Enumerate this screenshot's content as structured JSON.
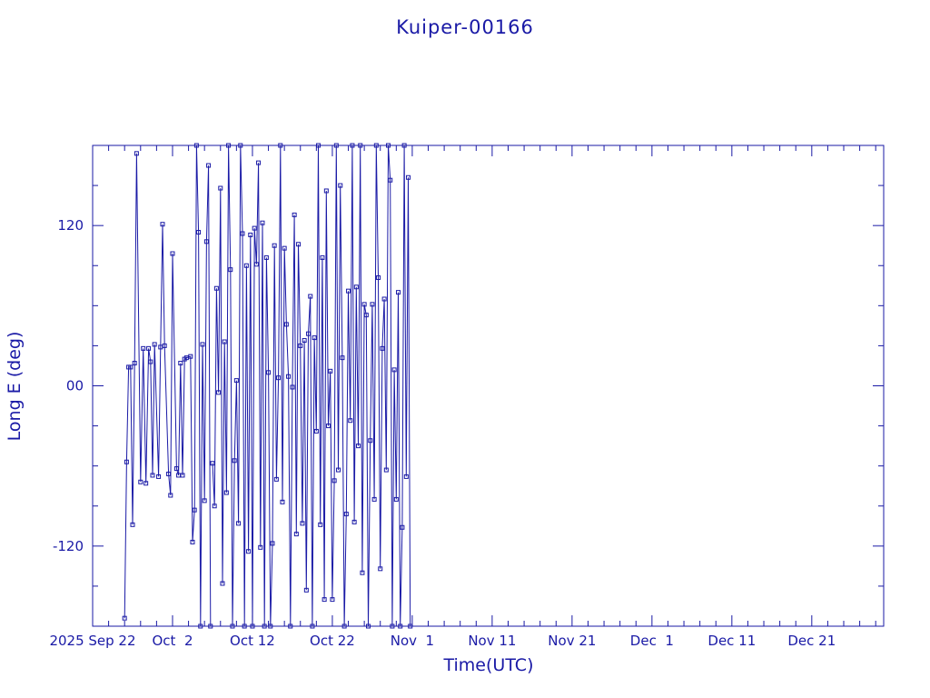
{
  "chart_data": {
    "type": "line",
    "title": "Kuiper-00166",
    "xlabel": "Time(UTC)",
    "ylabel": "Long E (deg)",
    "xlim": [
      "2025-09-22",
      "2025-12-30"
    ],
    "ylim": [
      -180,
      180
    ],
    "x_tick_labels": [
      {
        "date": "2025-09-22",
        "label": "2025 Sep 22"
      },
      {
        "date": "2025-10-02",
        "label": "Oct  2"
      },
      {
        "date": "2025-10-12",
        "label": "Oct 12"
      },
      {
        "date": "2025-10-22",
        "label": "Oct 22"
      },
      {
        "date": "2025-11-01",
        "label": "Nov  1"
      },
      {
        "date": "2025-11-11",
        "label": "Nov 11"
      },
      {
        "date": "2025-11-21",
        "label": "Nov 21"
      },
      {
        "date": "2025-12-01",
        "label": "Dec  1"
      },
      {
        "date": "2025-12-11",
        "label": "Dec 11"
      },
      {
        "date": "2025-12-21",
        "label": "Dec 21"
      }
    ],
    "y_ticks": [
      -120,
      0,
      120
    ],
    "y_tick_labels": [
      "-120",
      "00",
      "120"
    ],
    "line_color": "#1a1aa6",
    "marker": "square",
    "series": [
      {
        "points": [
          [
            "2025-09-26T00:00",
            -174
          ],
          [
            "2025-09-26T06:00",
            -57
          ],
          [
            "2025-09-26T12:00",
            14
          ],
          [
            "2025-09-26T18:00",
            14
          ],
          [
            "2025-09-27T00:00",
            -104
          ],
          [
            "2025-09-27T06:00",
            17
          ],
          [
            "2025-09-27T12:00",
            174
          ],
          [
            "2025-09-28T00:00",
            -72
          ],
          [
            "2025-09-28T08:00",
            28
          ],
          [
            "2025-09-28T16:00",
            -73
          ],
          [
            "2025-09-29T00:00",
            28
          ],
          [
            "2025-09-29T06:00",
            18
          ],
          [
            "2025-09-29T12:00",
            -67
          ],
          [
            "2025-09-29T18:00",
            31
          ],
          [
            "2025-09-30T06:00",
            -68
          ],
          [
            "2025-09-30T12:00",
            29
          ],
          [
            "2025-09-30T18:00",
            121
          ],
          [
            "2025-10-01T00:00",
            30
          ],
          [
            "2025-10-01T12:00",
            -66
          ],
          [
            "2025-10-01T18:00",
            -82
          ],
          [
            "2025-10-02T00:00",
            99
          ],
          [
            "2025-10-02T12:00",
            -62
          ],
          [
            "2025-10-02T18:00",
            -67
          ],
          [
            "2025-10-03T00:00",
            17
          ],
          [
            "2025-10-03T06:00",
            -67
          ],
          [
            "2025-10-03T12:00",
            20
          ],
          [
            "2025-10-03T18:00",
            21
          ],
          [
            "2025-10-04T06:00",
            22
          ],
          [
            "2025-10-04T12:00",
            -117
          ],
          [
            "2025-10-04T18:00",
            -93
          ],
          [
            "2025-10-05T00:00",
            180
          ],
          [
            "2025-10-05T06:00",
            115
          ],
          [
            "2025-10-05T12:00",
            -180
          ],
          [
            "2025-10-05T18:00",
            31
          ],
          [
            "2025-10-06T00:00",
            -86
          ],
          [
            "2025-10-06T06:00",
            108
          ],
          [
            "2025-10-06T12:00",
            165
          ],
          [
            "2025-10-06T18:00",
            -180
          ]
        ]
      },
      {
        "points": [
          [
            "2025-10-07T00:00",
            -58
          ],
          [
            "2025-10-07T06:00",
            -90
          ],
          [
            "2025-10-07T12:00",
            73
          ],
          [
            "2025-10-07T18:00",
            -5
          ],
          [
            "2025-10-08T00:00",
            148
          ],
          [
            "2025-10-08T06:00",
            -148
          ],
          [
            "2025-10-08T12:00",
            33
          ],
          [
            "2025-10-08T18:00",
            -80
          ],
          [
            "2025-10-09T00:00",
            180
          ],
          [
            "2025-10-09T06:00",
            87
          ],
          [
            "2025-10-09T12:00",
            -180
          ],
          [
            "2025-10-09T18:00",
            -56
          ],
          [
            "2025-10-10T00:00",
            4
          ],
          [
            "2025-10-10T06:00",
            -103
          ],
          [
            "2025-10-10T12:00",
            180
          ],
          [
            "2025-10-10T18:00",
            114
          ],
          [
            "2025-10-11T00:00",
            -180
          ],
          [
            "2025-10-11T06:00",
            90
          ],
          [
            "2025-10-11T12:00",
            -124
          ],
          [
            "2025-10-11T18:00",
            113
          ],
          [
            "2025-10-12T00:00",
            -180
          ],
          [
            "2025-10-12T06:00",
            118
          ],
          [
            "2025-10-12T12:00",
            91
          ],
          [
            "2025-10-12T18:00",
            167
          ],
          [
            "2025-10-13T00:00",
            -121
          ],
          [
            "2025-10-13T06:00",
            122
          ],
          [
            "2025-10-13T12:00",
            -180
          ],
          [
            "2025-10-13T18:00",
            96
          ],
          [
            "2025-10-14T00:00",
            10
          ],
          [
            "2025-10-14T06:00",
            -180
          ],
          [
            "2025-10-14T12:00",
            -118
          ],
          [
            "2025-10-14T18:00",
            105
          ],
          [
            "2025-10-15T00:00",
            -70
          ],
          [
            "2025-10-15T06:00",
            6
          ],
          [
            "2025-10-15T12:00",
            180
          ],
          [
            "2025-10-15T18:00",
            -87
          ],
          [
            "2025-10-16T00:00",
            103
          ],
          [
            "2025-10-16T06:00",
            46
          ],
          [
            "2025-10-16T12:00",
            7
          ],
          [
            "2025-10-16T18:00",
            -180
          ],
          [
            "2025-10-17T00:00",
            -1
          ],
          [
            "2025-10-17T06:00",
            128
          ],
          [
            "2025-10-17T12:00",
            -111
          ],
          [
            "2025-10-17T18:00",
            106
          ],
          [
            "2025-10-18T00:00",
            30
          ],
          [
            "2025-10-18T06:00",
            -103
          ],
          [
            "2025-10-18T12:00",
            34
          ],
          [
            "2025-10-18T18:00",
            -153
          ],
          [
            "2025-10-19T00:00",
            39
          ],
          [
            "2025-10-19T06:00",
            67
          ],
          [
            "2025-10-19T12:00",
            -180
          ],
          [
            "2025-10-19T18:00",
            36
          ],
          [
            "2025-10-20T00:00",
            -34
          ],
          [
            "2025-10-20T06:00",
            180
          ],
          [
            "2025-10-20T12:00",
            -104
          ],
          [
            "2025-10-20T18:00",
            96
          ],
          [
            "2025-10-21T00:00",
            -160
          ],
          [
            "2025-10-21T06:00",
            146
          ],
          [
            "2025-10-21T12:00",
            -30
          ],
          [
            "2025-10-21T18:00",
            11
          ],
          [
            "2025-10-22T00:00",
            -160
          ],
          [
            "2025-10-22T06:00",
            -71
          ],
          [
            "2025-10-22T12:00",
            180
          ],
          [
            "2025-10-22T18:00",
            -63
          ],
          [
            "2025-10-23T00:00",
            150
          ],
          [
            "2025-10-23T06:00",
            21
          ],
          [
            "2025-10-23T12:00",
            -180
          ],
          [
            "2025-10-23T18:00",
            -96
          ],
          [
            "2025-10-24T00:00",
            71
          ],
          [
            "2025-10-24T06:00",
            -26
          ],
          [
            "2025-10-24T12:00",
            180
          ],
          [
            "2025-10-24T18:00",
            -102
          ],
          [
            "2025-10-25T00:00",
            74
          ],
          [
            "2025-10-25T06:00",
            -45
          ],
          [
            "2025-10-25T12:00",
            180
          ],
          [
            "2025-10-25T18:00",
            -140
          ],
          [
            "2025-10-26T00:00",
            61
          ],
          [
            "2025-10-26T06:00",
            53
          ],
          [
            "2025-10-26T12:00",
            -180
          ],
          [
            "2025-10-26T18:00",
            -41
          ],
          [
            "2025-10-27T00:00",
            61
          ],
          [
            "2025-10-27T06:00",
            -85
          ],
          [
            "2025-10-27T12:00",
            180
          ],
          [
            "2025-10-27T18:00",
            81
          ],
          [
            "2025-10-28T00:00",
            -137
          ],
          [
            "2025-10-28T06:00",
            28
          ],
          [
            "2025-10-28T12:00",
            65
          ],
          [
            "2025-10-28T18:00",
            -63
          ],
          [
            "2025-10-29T00:00",
            180
          ],
          [
            "2025-10-29T06:00",
            154
          ],
          [
            "2025-10-29T12:00",
            -180
          ],
          [
            "2025-10-29T18:00",
            12
          ],
          [
            "2025-10-30T00:00",
            -85
          ],
          [
            "2025-10-30T06:00",
            70
          ],
          [
            "2025-10-30T12:00",
            -180
          ],
          [
            "2025-10-30T18:00",
            -106
          ],
          [
            "2025-10-31T00:00",
            180
          ],
          [
            "2025-10-31T06:00",
            -68
          ],
          [
            "2025-10-31T12:00",
            156
          ],
          [
            "2025-10-31T18:00",
            -180
          ]
        ]
      }
    ]
  }
}
